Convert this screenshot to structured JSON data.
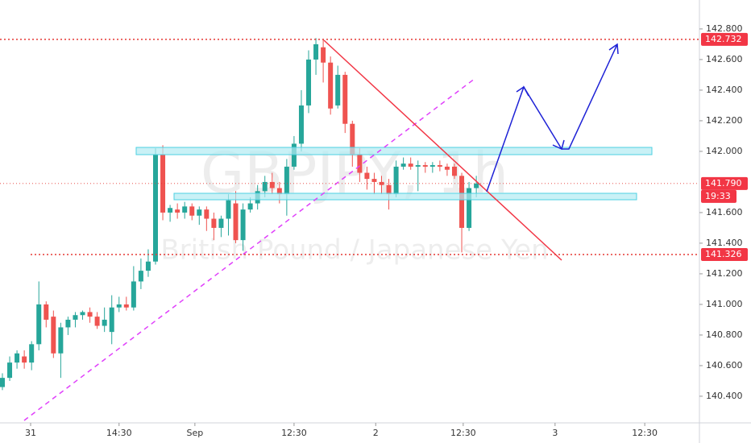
{
  "chart_data": {
    "type": "candlestick",
    "title": "GBPJPY, 1h",
    "subtitle": "British Pound / Japanese Yen",
    "x": [
      0,
      1,
      2,
      3,
      4,
      5,
      6,
      7,
      8,
      9,
      10,
      11,
      12,
      13,
      14,
      15,
      16,
      17,
      18,
      19,
      20,
      21,
      22,
      23,
      24,
      25,
      26,
      27,
      28,
      29,
      30,
      31,
      32,
      33,
      34,
      35,
      36,
      37,
      38,
      39,
      40,
      41,
      42,
      43,
      44,
      45,
      46,
      47,
      48,
      49,
      50,
      51,
      52,
      53,
      54,
      55,
      56,
      57,
      58,
      59,
      60,
      61,
      62,
      63,
      64,
      65
    ],
    "open": [
      140.46,
      140.52,
      140.62,
      140.66,
      140.62,
      140.74,
      141.0,
      140.92,
      140.68,
      140.85,
      140.9,
      140.93,
      140.95,
      140.92,
      140.86,
      140.82,
      140.98,
      141.0,
      140.98,
      141.15,
      141.22,
      141.28,
      141.98,
      141.6,
      141.62,
      141.6,
      141.64,
      141.58,
      141.62,
      141.56,
      141.5,
      141.56,
      141.66,
      141.42,
      141.62,
      141.66,
      141.74,
      141.8,
      141.76,
      141.72,
      141.9,
      142.05,
      142.3,
      142.6,
      142.68,
      142.58,
      142.3,
      142.5,
      142.18,
      141.98,
      141.86,
      141.82,
      141.8,
      141.78,
      141.72,
      141.9,
      141.92,
      141.9,
      141.91,
      141.9,
      141.91,
      141.9,
      141.9,
      141.84,
      141.5,
      141.76
    ],
    "high": [
      140.55,
      140.66,
      140.7,
      140.7,
      140.76,
      141.15,
      141.02,
      140.96,
      140.88,
      140.92,
      140.95,
      140.96,
      140.98,
      140.95,
      140.98,
      141.06,
      141.05,
      141.05,
      141.25,
      141.3,
      141.36,
      142.02,
      142.04,
      141.65,
      141.66,
      141.67,
      141.66,
      141.64,
      141.64,
      141.6,
      141.58,
      141.72,
      141.74,
      141.66,
      141.7,
      141.78,
      141.84,
      141.86,
      141.8,
      141.95,
      142.1,
      142.4,
      142.66,
      142.74,
      142.73,
      142.62,
      142.56,
      142.52,
      142.2,
      142.02,
      141.9,
      141.86,
      141.84,
      141.82,
      141.94,
      141.96,
      141.96,
      141.94,
      141.93,
      141.93,
      141.94,
      141.92,
      141.92,
      141.86,
      141.8,
      141.84
    ],
    "low": [
      140.44,
      140.5,
      140.58,
      140.58,
      140.57,
      140.7,
      140.85,
      140.65,
      140.52,
      140.8,
      140.85,
      140.9,
      140.88,
      140.84,
      140.82,
      140.74,
      140.95,
      140.96,
      140.96,
      141.1,
      141.18,
      141.26,
      141.55,
      141.54,
      141.56,
      141.56,
      141.55,
      141.52,
      141.48,
      141.42,
      141.44,
      141.45,
      141.4,
      141.35,
      141.6,
      141.62,
      141.7,
      141.72,
      141.66,
      141.58,
      141.88,
      142.0,
      142.25,
      142.5,
      142.45,
      142.24,
      142.28,
      142.12,
      141.9,
      141.8,
      141.75,
      141.72,
      141.72,
      141.62,
      141.7,
      141.88,
      141.88,
      141.74,
      141.86,
      141.86,
      141.87,
      141.84,
      141.82,
      141.34,
      141.48,
      141.7
    ],
    "close": [
      140.52,
      140.62,
      140.68,
      140.62,
      140.74,
      141.0,
      140.9,
      140.68,
      140.85,
      140.9,
      140.93,
      140.95,
      140.92,
      140.86,
      140.9,
      140.98,
      141.0,
      140.98,
      141.15,
      141.22,
      141.28,
      141.98,
      141.6,
      141.63,
      141.6,
      141.64,
      141.58,
      141.62,
      141.56,
      141.5,
      141.56,
      141.68,
      141.42,
      141.62,
      141.66,
      141.74,
      141.8,
      141.76,
      141.72,
      141.9,
      142.05,
      142.3,
      142.6,
      142.7,
      142.58,
      142.28,
      142.5,
      142.18,
      141.98,
      141.86,
      141.82,
      141.8,
      141.78,
      141.72,
      141.9,
      141.92,
      141.9,
      141.91,
      141.9,
      141.91,
      141.9,
      141.88,
      141.84,
      141.5,
      141.76,
      141.79
    ],
    "up_color": "#26a69a",
    "down_color": "#ef5350",
    "xlim": [
      -0.33,
      95.6
    ],
    "xticks": [
      {
        "value": 3.87,
        "label": "31"
      },
      {
        "value": 16.0,
        "label": "14:30"
      },
      {
        "value": 26.4,
        "label": "Sep"
      },
      {
        "value": 40.0,
        "label": "12:30"
      },
      {
        "value": 51.2,
        "label": "2"
      },
      {
        "value": 63.2,
        "label": "12:30"
      },
      {
        "value": 75.8,
        "label": "3"
      },
      {
        "value": 88.1,
        "label": "12:30"
      }
    ],
    "ylim": [
      140.226,
      142.989
    ],
    "yticks": [
      {
        "value": 142.8,
        "label": "142.800"
      },
      {
        "value": 142.6,
        "label": "142.600"
      },
      {
        "value": 142.4,
        "label": "142.400"
      },
      {
        "value": 142.2,
        "label": "142.200"
      },
      {
        "value": 142.0,
        "label": "142.000"
      },
      {
        "value": 141.6,
        "label": "141.600"
      },
      {
        "value": 141.4,
        "label": "141.400"
      },
      {
        "value": 141.2,
        "label": "141.200"
      },
      {
        "value": 141.0,
        "label": "141.000"
      },
      {
        "value": 140.8,
        "label": "140.800"
      },
      {
        "value": 140.6,
        "label": "140.600"
      },
      {
        "value": 140.4,
        "label": "140.400"
      }
    ],
    "price_lines": [
      142.732,
      {
        "value": 141.79,
        "label": "141.790"
      },
      141.326
    ],
    "countdown": "19:33"
  }
}
